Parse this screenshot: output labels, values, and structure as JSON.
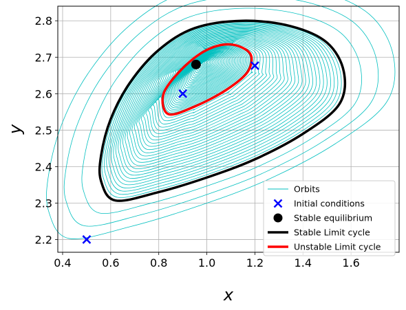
{
  "chart_data": {
    "type": "line",
    "title": "",
    "xlabel": "x",
    "ylabel": "y",
    "xlim": [
      0.38,
      1.8
    ],
    "ylim": [
      2.165,
      2.84
    ],
    "xticks": [
      0.4,
      0.6,
      0.8,
      1.0,
      1.2,
      1.4,
      1.6
    ],
    "xtick_labels": [
      "0.4",
      "0.6",
      "0.8",
      "1.0",
      "1.2",
      "1.4",
      "1.6"
    ],
    "yticks": [
      2.2,
      2.3,
      2.4,
      2.5,
      2.6,
      2.7,
      2.8
    ],
    "ytick_labels": [
      "2.2",
      "2.3",
      "2.4",
      "2.5",
      "2.6",
      "2.7",
      "2.8"
    ],
    "grid": true,
    "legend_position": "lower-right",
    "colors": {
      "orbits": "#00bfbf",
      "initial_conditions": "#0000ff",
      "equilibrium": "#000000",
      "stable_cycle": "#000000",
      "unstable_cycle": "#ff0000"
    },
    "series": [
      {
        "name": "Orbits",
        "kind": "line",
        "description_points": "trajectories spiralling between the initial conditions and the limit cycles"
      },
      {
        "name": "Initial conditions",
        "kind": "marker",
        "marker": "x",
        "points": [
          [
            0.5,
            2.2
          ],
          [
            0.9,
            2.6
          ],
          [
            1.2,
            2.677
          ]
        ]
      },
      {
        "name": "Stable equilibrium",
        "kind": "marker",
        "marker": "o",
        "points": [
          [
            0.955,
            2.68
          ]
        ]
      },
      {
        "name": "Stable Limit cycle",
        "kind": "closed-curve",
        "points": [
          [
            0.62,
            2.307
          ],
          [
            0.8,
            2.33
          ],
          [
            1.0,
            2.37
          ],
          [
            1.2,
            2.42
          ],
          [
            1.4,
            2.49
          ],
          [
            1.55,
            2.57
          ],
          [
            1.57,
            2.66
          ],
          [
            1.5,
            2.74
          ],
          [
            1.35,
            2.785
          ],
          [
            1.15,
            2.8
          ],
          [
            0.95,
            2.78
          ],
          [
            0.8,
            2.72
          ],
          [
            0.68,
            2.63
          ],
          [
            0.6,
            2.53
          ],
          [
            0.56,
            2.43
          ],
          [
            0.56,
            2.36
          ]
        ]
      },
      {
        "name": "Unstable Limit cycle",
        "kind": "closed-curve",
        "points": [
          [
            0.84,
            2.544
          ],
          [
            0.95,
            2.565
          ],
          [
            1.08,
            2.61
          ],
          [
            1.17,
            2.66
          ],
          [
            1.18,
            2.71
          ],
          [
            1.1,
            2.735
          ],
          [
            1.0,
            2.72
          ],
          [
            0.9,
            2.67
          ],
          [
            0.82,
            2.6
          ]
        ]
      }
    ]
  }
}
